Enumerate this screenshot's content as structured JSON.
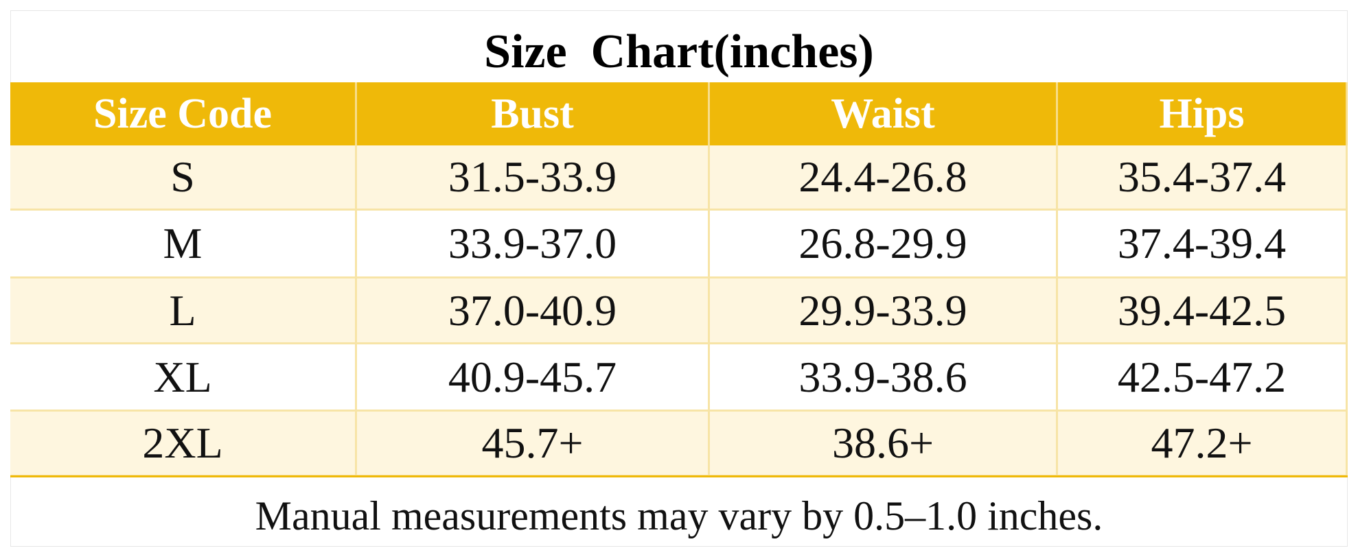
{
  "header": {
    "title": "Size  Chart(inches)"
  },
  "table": {
    "columns": [
      "Size Code",
      "Bust",
      "Waist",
      "Hips"
    ],
    "rows": [
      [
        "S",
        "31.5-33.9",
        "24.4-26.8",
        "35.4-37.4"
      ],
      [
        "M",
        "33.9-37.0",
        "26.8-29.9",
        "37.4-39.4"
      ],
      [
        "L",
        "37.0-40.9",
        "29.9-33.9",
        "39.4-42.5"
      ],
      [
        "XL",
        "40.9-45.7",
        "33.9-38.6",
        "42.5-47.2"
      ],
      [
        "2XL",
        "45.7+",
        "38.6+",
        "47.2+"
      ]
    ]
  },
  "footer": {
    "note": "Manual measurements may vary by 0.5–1.0 inches."
  }
}
